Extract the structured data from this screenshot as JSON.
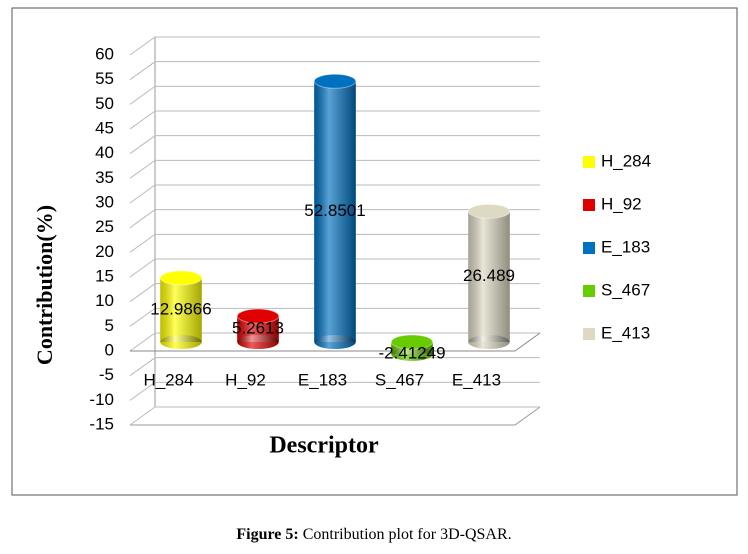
{
  "chart_data": {
    "type": "bar",
    "categories": [
      "H_284",
      "H_92",
      "E_183",
      "S_467",
      "E_413"
    ],
    "values": [
      12.9866,
      5.2613,
      52.8501,
      -2.41249,
      26.489
    ],
    "colors": [
      "#ffff00",
      "#e00000",
      "#0070c0",
      "#66cc00",
      "#ddd9c3"
    ],
    "xlabel": "Descriptor",
    "ylabel": "Contribution(%)",
    "ylim": [
      -15,
      60
    ],
    "yticks": [
      -15,
      -10,
      -5,
      0,
      5,
      10,
      15,
      20,
      25,
      30,
      35,
      40,
      45,
      50,
      55,
      60
    ],
    "grid": true,
    "legend": "right"
  },
  "caption": {
    "label": "Figure 5:",
    "text": "Contribution plot for 3D-QSAR."
  }
}
